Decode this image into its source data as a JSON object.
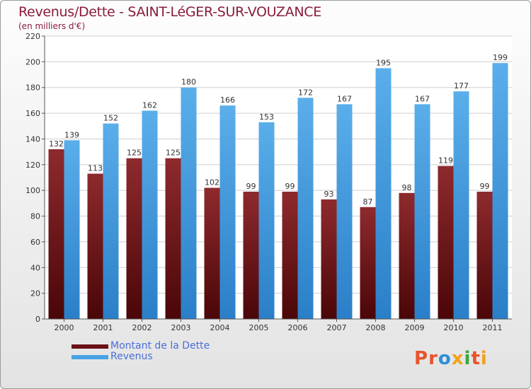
{
  "title": "Revenus/Dette - SAINT-LéGER-SUR-VOUZANCE",
  "subtitle": "(en milliers d'€)",
  "chart_data": {
    "type": "bar",
    "categories": [
      "2000",
      "2001",
      "2002",
      "2003",
      "2004",
      "2005",
      "2006",
      "2007",
      "2008",
      "2009",
      "2010",
      "2011"
    ],
    "series": [
      {
        "name": "Montant de la Dette",
        "color": "#7a1a1e",
        "values": [
          132,
          113,
          125,
          125,
          102,
          99,
          99,
          93,
          87,
          98,
          119,
          99
        ]
      },
      {
        "name": "Revenus",
        "color": "#4aa3e6",
        "values": [
          139,
          152,
          162,
          180,
          166,
          153,
          172,
          167,
          195,
          167,
          177,
          199
        ]
      }
    ],
    "ylim": [
      0,
      220
    ],
    "yticks": [
      0,
      20,
      40,
      60,
      80,
      100,
      120,
      140,
      160,
      180,
      200,
      220
    ],
    "grid": true,
    "legend_position": "bottom-left"
  },
  "legend": {
    "items": [
      {
        "label": "Montant de la Dette",
        "color": "#7a1a1e"
      },
      {
        "label": "Revenus",
        "color": "#4aa3e6"
      }
    ]
  },
  "logo": {
    "text": "Proxiti",
    "colors": [
      "#e8542b",
      "#2a8fd6",
      "#f0a21a",
      "#3aa63a"
    ]
  }
}
